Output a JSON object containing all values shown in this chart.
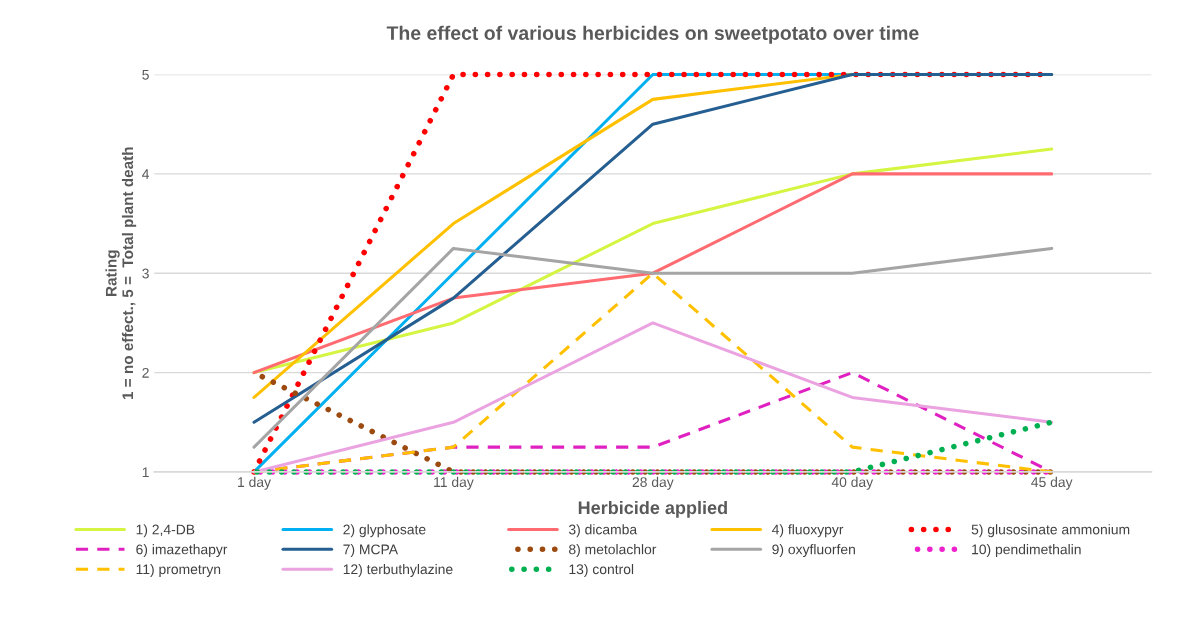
{
  "chart_data": {
    "type": "line",
    "title": "The effect of various herbicides on sweetpotato over time",
    "xlabel": "Herbicide applied",
    "ylabel": "Rating\n1 = no effect., 5 =  Total plant death",
    "categories": [
      "1 day",
      "11 day",
      "28 day",
      "40 day",
      "45 day"
    ],
    "ylim": [
      1,
      5
    ],
    "yticks": [
      1,
      2,
      3,
      4,
      5
    ],
    "grid": "y",
    "legend": "bottom",
    "marker": "none",
    "series": [
      {
        "name": "1) 2,4-DB",
        "color": "#d4f542",
        "line_style": "solid",
        "values": [
          2,
          2.5,
          3.5,
          4,
          4.25
        ]
      },
      {
        "name": "2) glyphosate",
        "color": "#00b0f0",
        "line_style": "solid",
        "values": [
          1,
          3,
          5,
          5,
          5
        ]
      },
      {
        "name": "3) dicamba",
        "color": "#ff6b70",
        "line_style": "solid",
        "values": [
          2,
          2.75,
          3,
          4,
          4
        ]
      },
      {
        "name": "4) fluoxypyr",
        "color": "#ffc000",
        "line_style": "solid",
        "values": [
          1.75,
          3.5,
          4.75,
          5,
          5
        ]
      },
      {
        "name": "5) glusosinate ammonium",
        "color": "#ff0000",
        "line_style": "dotted",
        "values": [
          1,
          5,
          5,
          5,
          5
        ]
      },
      {
        "name": "6) imazethapyr",
        "color": "#e020c0",
        "line_style": "dashed",
        "values": [
          1,
          1.25,
          1.25,
          2,
          1
        ]
      },
      {
        "name": "7) MCPA",
        "color": "#255e91",
        "line_style": "solid",
        "values": [
          1.5,
          2.75,
          4.5,
          5,
          5
        ]
      },
      {
        "name": "8) metolachlor",
        "color": "#9c4a10",
        "line_style": "dotted",
        "values": [
          2,
          1,
          1,
          1,
          1
        ]
      },
      {
        "name": "9) oxyfluorfen",
        "color": "#a5a5a5",
        "line_style": "solid",
        "values": [
          1.25,
          3.25,
          3,
          3,
          3.25
        ]
      },
      {
        "name": "10) pendimethalin",
        "color": "#ee22cc",
        "line_style": "dotted",
        "values": [
          1,
          1,
          1,
          1,
          1
        ]
      },
      {
        "name": "11) prometryn",
        "color": "#ffc000",
        "line_style": "dashed",
        "values": [
          1,
          1.25,
          3,
          1.25,
          1
        ]
      },
      {
        "name": "12) terbuthylazine",
        "color": "#eaa3e0",
        "line_style": "solid",
        "values": [
          1,
          1.5,
          2.5,
          1.75,
          1.5
        ]
      },
      {
        "name": "13) control",
        "color": "#00b050",
        "line_style": "dotted",
        "values": [
          1,
          1,
          1,
          1,
          1.5
        ]
      }
    ]
  }
}
